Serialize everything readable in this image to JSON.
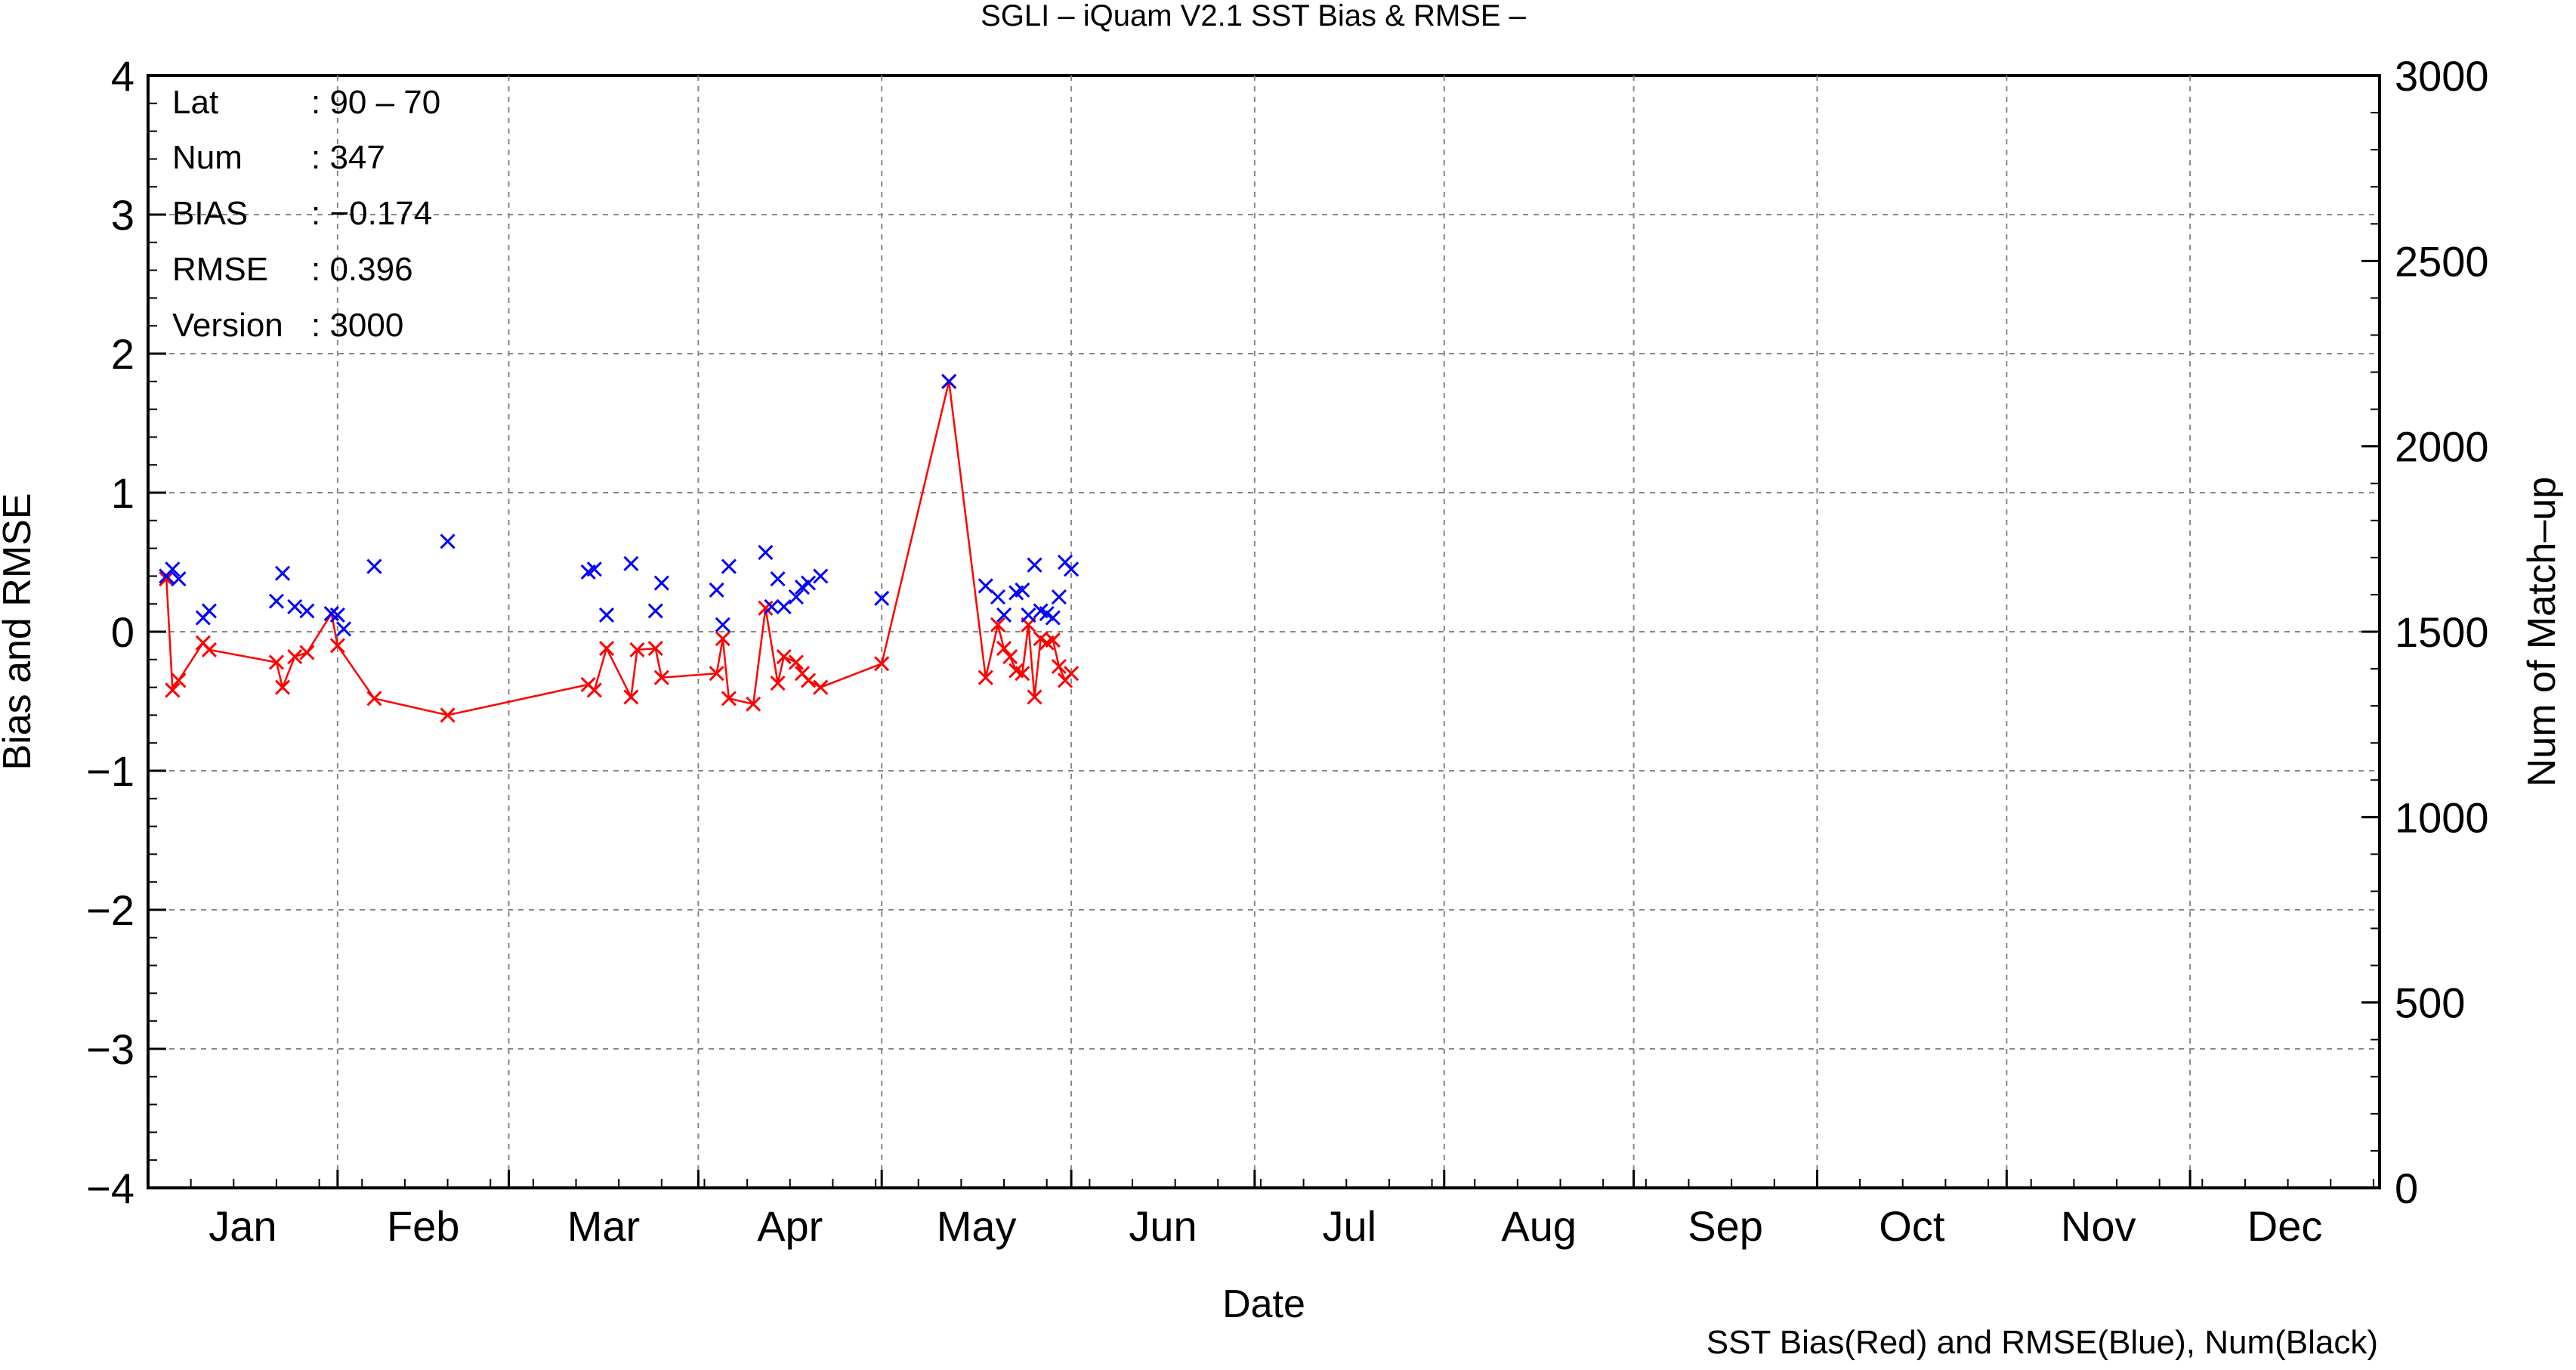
{
  "chart_data": {
    "type": "line",
    "title": "SGLI – iQuam V2.1 SST Bias & RMSE  –",
    "xlabel": "Date",
    "ylabel": "Bias and RMSE",
    "y2label": "Num of Match–up",
    "footer": "SST Bias(Red) and RMSE(Blue), Num(Black)",
    "x_range_day_of_year": [
      1,
      366
    ],
    "ylim": [
      -4,
      4
    ],
    "y2lim": [
      0,
      3000
    ],
    "y_ticks": [
      "−4",
      "−3",
      "−2",
      "−1",
      "0",
      "1",
      "2",
      "3",
      "4"
    ],
    "y2_ticks": [
      "0",
      "500",
      "1000",
      "1500",
      "2000",
      "2500",
      "3000"
    ],
    "months": [
      "Jan",
      "Feb",
      "Mar",
      "Apr",
      "May",
      "Jun",
      "Jul",
      "Aug",
      "Sep",
      "Oct",
      "Nov",
      "Dec"
    ],
    "grid": true,
    "stats": [
      {
        "label": "Lat",
        "value": ": 90 – 70"
      },
      {
        "label": "Num",
        "value": ": 347"
      },
      {
        "label": "BIAS",
        "value": ": −0.174"
      },
      {
        "label": "RMSE",
        "value": ": 0.396"
      },
      {
        "label": "Version",
        "value": ": 3000"
      }
    ],
    "series": [
      {
        "name": "SST Bias",
        "color": "#ff0000",
        "style": "line+marker",
        "points": [
          [
            4,
            0.38
          ],
          [
            5,
            -0.42
          ],
          [
            6,
            -0.35
          ],
          [
            10,
            -0.08
          ],
          [
            11,
            -0.13
          ],
          [
            22,
            -0.22
          ],
          [
            23,
            -0.4
          ],
          [
            25,
            -0.18
          ],
          [
            27,
            -0.15
          ],
          [
            31,
            0.13
          ],
          [
            32,
            -0.1
          ],
          [
            38,
            -0.48
          ],
          [
            50,
            -0.6
          ],
          [
            73,
            -0.38
          ],
          [
            74,
            -0.42
          ],
          [
            76,
            -0.12
          ],
          [
            80,
            -0.47
          ],
          [
            81,
            -0.13
          ],
          [
            84,
            -0.12
          ],
          [
            85,
            -0.33
          ],
          [
            94,
            -0.3
          ],
          [
            95,
            -0.05
          ],
          [
            96,
            -0.48
          ],
          [
            100,
            -0.52
          ],
          [
            102,
            0.17
          ],
          [
            104,
            -0.37
          ],
          [
            105,
            -0.18
          ],
          [
            107,
            -0.22
          ],
          [
            108,
            -0.3
          ],
          [
            109,
            -0.35
          ],
          [
            111,
            -0.4
          ],
          [
            121,
            -0.23
          ],
          [
            132,
            1.8
          ],
          [
            138,
            -0.33
          ],
          [
            140,
            0.05
          ],
          [
            141,
            -0.12
          ],
          [
            142,
            -0.18
          ],
          [
            143,
            -0.28
          ],
          [
            144,
            -0.3
          ],
          [
            145,
            0.05
          ],
          [
            146,
            -0.47
          ],
          [
            147,
            -0.05
          ],
          [
            148,
            -0.08
          ],
          [
            149,
            -0.06
          ],
          [
            150,
            -0.25
          ],
          [
            151,
            -0.35
          ],
          [
            152,
            -0.3
          ]
        ]
      },
      {
        "name": "RMSE",
        "color": "#0000ff",
        "style": "marker",
        "points": [
          [
            4,
            0.4
          ],
          [
            5,
            0.45
          ],
          [
            6,
            0.38
          ],
          [
            10,
            0.1
          ],
          [
            11,
            0.15
          ],
          [
            22,
            0.22
          ],
          [
            23,
            0.42
          ],
          [
            25,
            0.18
          ],
          [
            27,
            0.15
          ],
          [
            31,
            0.13
          ],
          [
            32,
            0.12
          ],
          [
            33,
            0.02
          ],
          [
            38,
            0.47
          ],
          [
            50,
            0.65
          ],
          [
            73,
            0.43
          ],
          [
            74,
            0.45
          ],
          [
            76,
            0.12
          ],
          [
            80,
            0.49
          ],
          [
            84,
            0.15
          ],
          [
            85,
            0.35
          ],
          [
            94,
            0.3
          ],
          [
            95,
            0.05
          ],
          [
            96,
            0.47
          ],
          [
            102,
            0.57
          ],
          [
            103,
            0.18
          ],
          [
            104,
            0.38
          ],
          [
            105,
            0.18
          ],
          [
            107,
            0.25
          ],
          [
            108,
            0.32
          ],
          [
            109,
            0.35
          ],
          [
            111,
            0.4
          ],
          [
            121,
            0.24
          ],
          [
            132,
            1.8
          ],
          [
            138,
            0.33
          ],
          [
            140,
            0.25
          ],
          [
            141,
            0.12
          ],
          [
            143,
            0.28
          ],
          [
            144,
            0.3
          ],
          [
            145,
            0.12
          ],
          [
            146,
            0.48
          ],
          [
            147,
            0.15
          ],
          [
            148,
            0.13
          ],
          [
            149,
            0.1
          ],
          [
            150,
            0.25
          ],
          [
            151,
            0.5
          ],
          [
            152,
            0.45
          ]
        ]
      }
    ]
  }
}
